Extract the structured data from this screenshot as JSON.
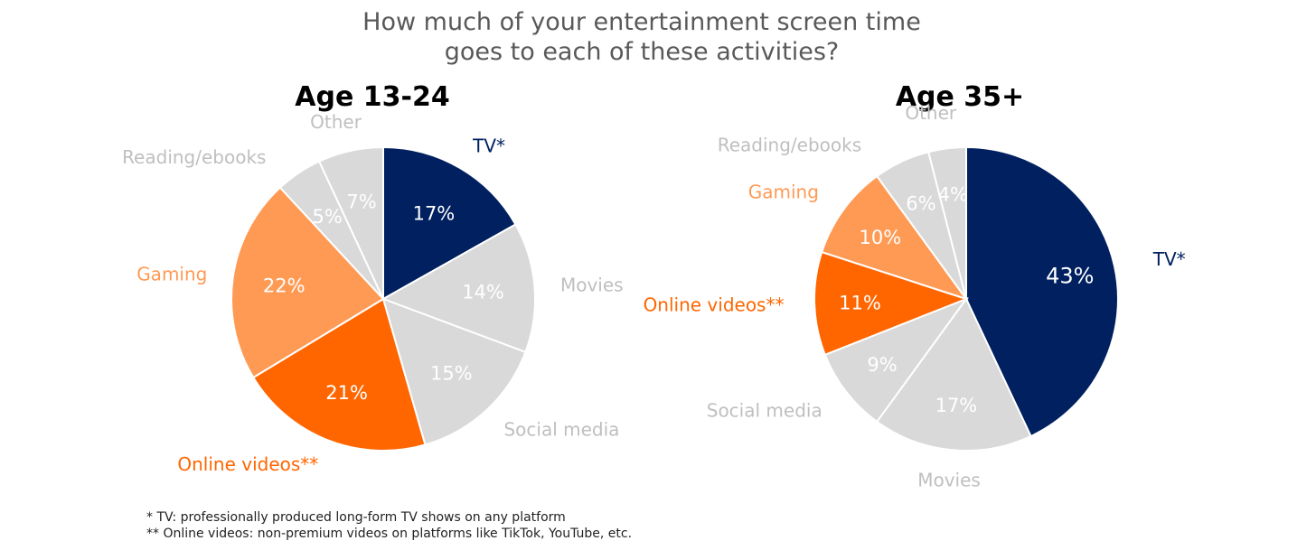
{
  "title_lines": [
    "How much of your entertainment screen time",
    "goes to each of these activities?"
  ],
  "colors": {
    "tv": "#002060",
    "online_videos": "#FF6600",
    "gaming": "#FF9A55",
    "gray_slice": "#D9D9D9",
    "gray_text": "#BFBFBF",
    "white_text": "#FFFFFF",
    "title_text": "#595959"
  },
  "footnotes": [
    "* TV:  professionally produced long-form TV shows on any platform",
    "** Online videos:  non-premium videos on platforms like TikTok, YouTube, etc."
  ],
  "chart_data": [
    {
      "type": "pie",
      "title": "Age 13-24",
      "start_angle_deg": 0,
      "direction": "clockwise",
      "slices": [
        {
          "label": "TV*",
          "value": 17,
          "value_label": "17%",
          "color": "#002060",
          "label_color": "#002060",
          "value_color": "#FFFFFF"
        },
        {
          "label": "Movies",
          "value": 14,
          "value_label": "14%",
          "color": "#D9D9D9",
          "label_color": "#BFBFBF",
          "value_color": "#FFFFFF"
        },
        {
          "label": "Social media",
          "value": 15,
          "value_label": "15%",
          "color": "#D9D9D9",
          "label_color": "#BFBFBF",
          "value_color": "#FFFFFF"
        },
        {
          "label": "Online videos**",
          "value": 21,
          "value_label": "21%",
          "color": "#FF6600",
          "label_color": "#FF6600",
          "value_color": "#FFFFFF"
        },
        {
          "label": "Gaming",
          "value": 22,
          "value_label": "22%",
          "color": "#FF9A55",
          "label_color": "#FF9A55",
          "value_color": "#FFFFFF"
        },
        {
          "label": "Reading/ebooks",
          "value": 5,
          "value_label": "5%",
          "color": "#D9D9D9",
          "label_color": "#BFBFBF",
          "value_color": "#FFFFFF"
        },
        {
          "label": "Other",
          "value": 7,
          "value_label": "7%",
          "color": "#D9D9D9",
          "label_color": "#BFBFBF",
          "value_color": "#FFFFFF"
        }
      ]
    },
    {
      "type": "pie",
      "title": "Age 35+",
      "start_angle_deg": 0,
      "direction": "clockwise",
      "slices": [
        {
          "label": "TV*",
          "value": 43,
          "value_label": "43%",
          "color": "#002060",
          "label_color": "#002060",
          "value_color": "#FFFFFF"
        },
        {
          "label": "Movies",
          "value": 17,
          "value_label": "17%",
          "color": "#D9D9D9",
          "label_color": "#BFBFBF",
          "value_color": "#FFFFFF"
        },
        {
          "label": "Social media",
          "value": 9,
          "value_label": "9%",
          "color": "#D9D9D9",
          "label_color": "#BFBFBF",
          "value_color": "#FFFFFF"
        },
        {
          "label": "Online videos**",
          "value": 11,
          "value_label": "11%",
          "color": "#FF6600",
          "label_color": "#FF6600",
          "value_color": "#FFFFFF"
        },
        {
          "label": "Gaming",
          "value": 10,
          "value_label": "10%",
          "color": "#FF9A55",
          "label_color": "#FF9A55",
          "value_color": "#FFFFFF"
        },
        {
          "label": "Reading/ebooks",
          "value": 6,
          "value_label": "6%",
          "color": "#D9D9D9",
          "label_color": "#BFBFBF",
          "value_color": "#FFFFFF"
        },
        {
          "label": "Other",
          "value": 4,
          "value_label": "4%",
          "color": "#D9D9D9",
          "label_color": "#BFBFBF",
          "value_color": "#FFFFFF"
        }
      ]
    }
  ]
}
